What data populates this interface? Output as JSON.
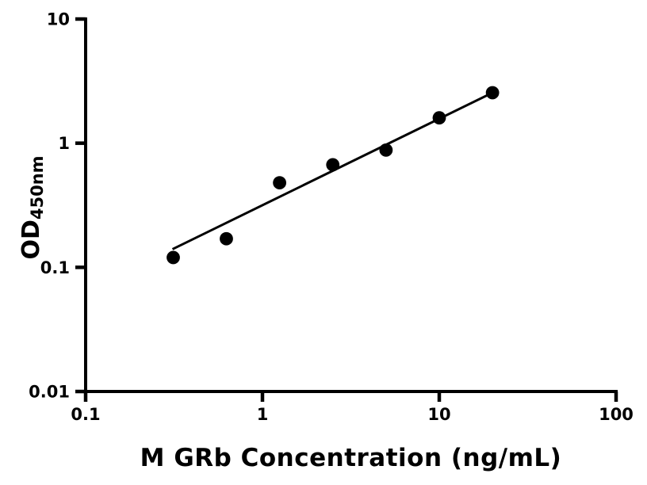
{
  "figure": {
    "background": "#ffffff",
    "ink": "#000000"
  },
  "chart_data": {
    "type": "scatter",
    "title": "",
    "xlabel": "M GRb Concentration (ng/mL)",
    "ylabel_main": "OD",
    "ylabel_sub": "450nm",
    "x_scale": "log",
    "y_scale": "log",
    "xlim": [
      0.1,
      100
    ],
    "ylim": [
      0.01,
      10
    ],
    "grid": false,
    "legend": "none",
    "x_ticks": [
      {
        "value": 0.1,
        "label": "0.1"
      },
      {
        "value": 1,
        "label": "1"
      },
      {
        "value": 10,
        "label": "10"
      },
      {
        "value": 100,
        "label": "100"
      }
    ],
    "y_ticks": [
      {
        "value": 10,
        "label": "10"
      },
      {
        "value": 1,
        "label": "1"
      },
      {
        "value": 0.1,
        "label": "0.1"
      },
      {
        "value": 0.01,
        "label": "0.01"
      }
    ],
    "points": [
      {
        "x": 0.313,
        "y": 0.12
      },
      {
        "x": 0.625,
        "y": 0.17
      },
      {
        "x": 1.25,
        "y": 0.48
      },
      {
        "x": 2.5,
        "y": 0.67
      },
      {
        "x": 5,
        "y": 0.88
      },
      {
        "x": 10,
        "y": 1.6
      },
      {
        "x": 20,
        "y": 2.55
      }
    ],
    "trend_line": {
      "x1": 0.31,
      "y1": 0.14,
      "x2": 20,
      "y2": 2.55
    },
    "marker": {
      "shape": "circle",
      "radius": 8.4,
      "color": "#000000"
    },
    "line_color": "#000000",
    "axis_color": "#000000"
  }
}
